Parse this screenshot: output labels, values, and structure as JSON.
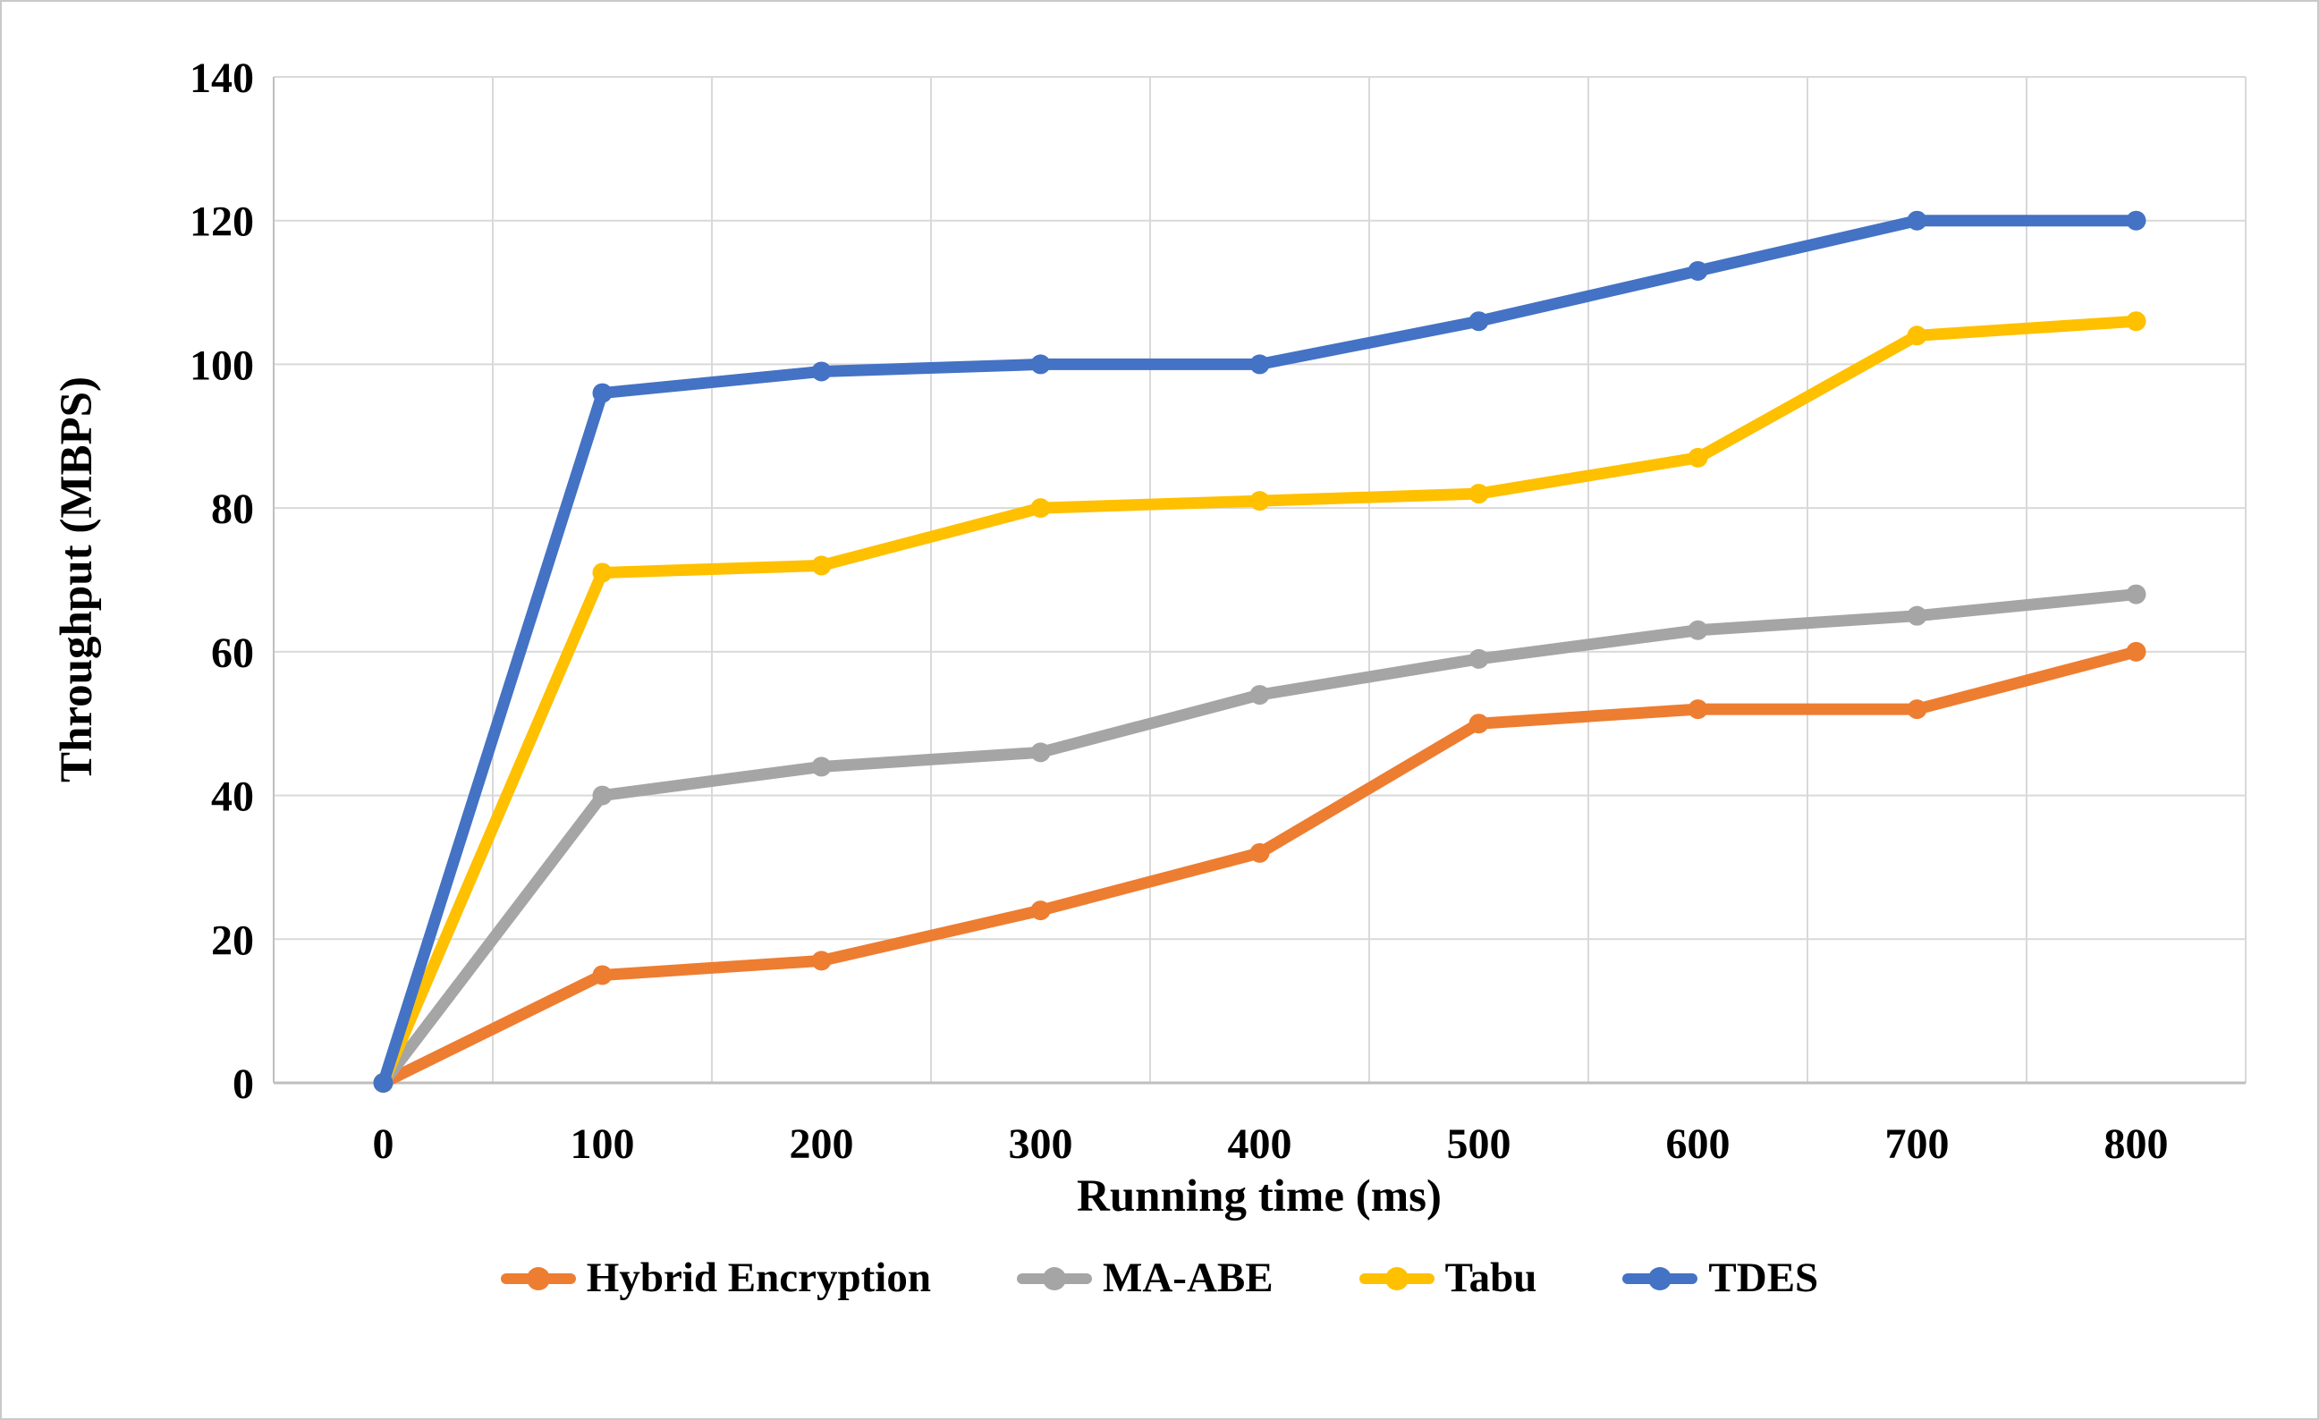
{
  "figure": {
    "background": "#FFFFFF",
    "border_color": "#C9C9C9"
  },
  "chart_data": {
    "type": "line",
    "title": "",
    "xlabel": "Running time (ms)",
    "ylabel": "Throughput (MBPS)",
    "x_categories": [
      "0",
      "100",
      "200",
      "300",
      "400",
      "500",
      "600",
      "700",
      "800"
    ],
    "y_ticks": [
      0,
      20,
      40,
      60,
      80,
      100,
      120,
      140
    ],
    "ylim": [
      0,
      140
    ],
    "grid": true,
    "legend_position": "bottom",
    "series": [
      {
        "name": "Hybrid Encryption",
        "color": "#ED7D31",
        "values": [
          0,
          15,
          17,
          24,
          32,
          50,
          52,
          52,
          60
        ]
      },
      {
        "name": "MA-ABE",
        "color": "#A5A5A5",
        "values": [
          0,
          40,
          44,
          46,
          54,
          59,
          63,
          65,
          68
        ]
      },
      {
        "name": "Tabu",
        "color": "#FFC000",
        "values": [
          0,
          71,
          72,
          80,
          81,
          82,
          87,
          104,
          106
        ]
      },
      {
        "name": "TDES",
        "color": "#4472C4",
        "values": [
          0,
          96,
          99,
          100,
          100,
          106,
          113,
          120,
          120
        ]
      }
    ],
    "styles": {
      "grid_color": "#D9D9D9",
      "axis_color": "#BFBFBF",
      "text_color": "#000000",
      "line_width": 13,
      "marker_radius": 11
    }
  }
}
